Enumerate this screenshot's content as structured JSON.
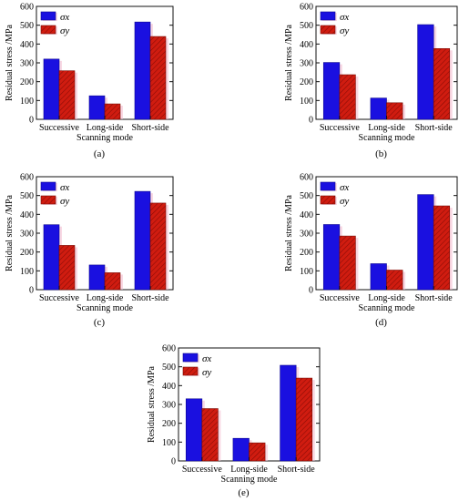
{
  "chart_data": [
    {
      "type": "bar",
      "panel_label": "(a)",
      "categories": [
        "Successive",
        "Long-side",
        "Short-side"
      ],
      "series": [
        {
          "name": "σx",
          "values": [
            320,
            125,
            517
          ]
        },
        {
          "name": "σy",
          "values": [
            258,
            82,
            440
          ]
        }
      ],
      "xlabel": "Scanning mode",
      "ylabel": "Residual stress /MPa",
      "ylim": [
        0,
        600
      ],
      "yticks": [
        "0",
        "100",
        "200",
        "300",
        "400",
        "500",
        "600"
      ],
      "legend": "top-left"
    },
    {
      "type": "bar",
      "panel_label": "(b)",
      "categories": [
        "Successive",
        "Long-side",
        "Short-side"
      ],
      "series": [
        {
          "name": "σx",
          "values": [
            302,
            113,
            503
          ]
        },
        {
          "name": "σy",
          "values": [
            237,
            88,
            376
          ]
        }
      ],
      "xlabel": "Scanning mode",
      "ylabel": "Residual stress /MPa",
      "ylim": [
        0,
        600
      ],
      "yticks": [
        "0",
        "100",
        "200",
        "300",
        "400",
        "500",
        "600"
      ],
      "legend": "top-left"
    },
    {
      "type": "bar",
      "panel_label": "(c)",
      "categories": [
        "Successive",
        "Long-side",
        "Short-side"
      ],
      "series": [
        {
          "name": "σx",
          "values": [
            345,
            131,
            522
          ]
        },
        {
          "name": "σy",
          "values": [
            235,
            90,
            460
          ]
        }
      ],
      "xlabel": "Scanning mode",
      "ylabel": "Residual stress /MPa",
      "ylim": [
        0,
        600
      ],
      "yticks": [
        "0",
        "100",
        "200",
        "300",
        "400",
        "500",
        "600"
      ],
      "legend": "top-left"
    },
    {
      "type": "bar",
      "panel_label": "(d)",
      "categories": [
        "Successive",
        "Long-side",
        "Short-side"
      ],
      "series": [
        {
          "name": "σx",
          "values": [
            346,
            138,
            505
          ]
        },
        {
          "name": "σy",
          "values": [
            285,
            104,
            445
          ]
        }
      ],
      "xlabel": "Scanning mode",
      "ylabel": "Residual stress /MPa",
      "ylim": [
        0,
        600
      ],
      "yticks": [
        "0",
        "100",
        "200",
        "300",
        "400",
        "500",
        "600"
      ],
      "legend": "top-left"
    },
    {
      "type": "bar",
      "panel_label": "(e)",
      "categories": [
        "Successive",
        "Long-side",
        "Short-side"
      ],
      "series": [
        {
          "name": "σx",
          "values": [
            330,
            120,
            508
          ]
        },
        {
          "name": "σy",
          "values": [
            278,
            96,
            440
          ]
        }
      ],
      "xlabel": "Scanning mode",
      "ylabel": "Residual stress /MPa",
      "ylim": [
        0,
        600
      ],
      "yticks": [
        "0",
        "100",
        "200",
        "300",
        "400",
        "500",
        "600"
      ],
      "legend": "top-left"
    }
  ],
  "colors": {
    "sigma_x": "#1a10e0",
    "sigma_y": "#d01c10",
    "shadow": "#f3b8cc"
  }
}
